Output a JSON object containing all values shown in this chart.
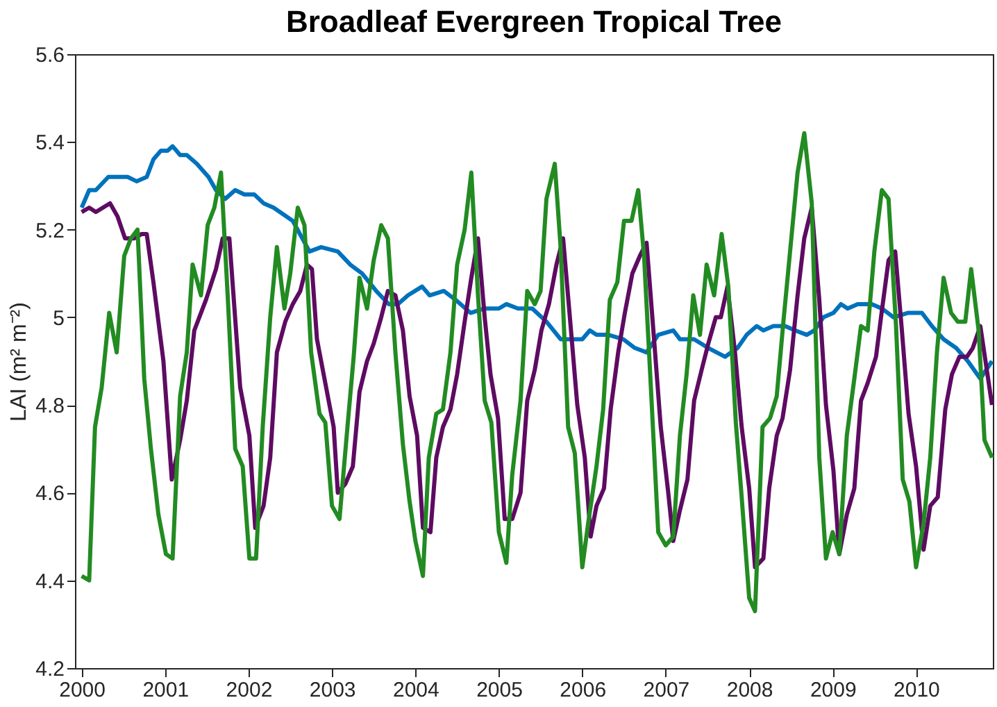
{
  "chart_data": {
    "type": "line",
    "title": "Broadleaf Evergreen Tropical Tree",
    "ylabel": "LAI (m² m⁻²)",
    "xlim": [
      1999.92,
      2010.92
    ],
    "xticks": [
      2000,
      2001,
      2002,
      2003,
      2004,
      2005,
      2006,
      2007,
      2008,
      2009,
      2010
    ],
    "ylim": [
      4.2,
      5.6
    ],
    "yticks": [
      4.2,
      4.4,
      4.6,
      4.8,
      5,
      5.2,
      5.4,
      5.6
    ],
    "grid": false,
    "marker": "none",
    "line_style": "solid",
    "series": [
      {
        "color": "#0072bd",
        "x": [
          2000,
          2000.09,
          2000.17,
          2000.32,
          2000.46,
          2000.55,
          2000.66,
          2000.78,
          2000.86,
          2000.95,
          2001.03,
          2001.09,
          2001.18,
          2001.26,
          2001.38,
          2001.52,
          2001.61,
          2001.72,
          2001.84,
          2001.95,
          2002.07,
          2002.18,
          2002.3,
          2002.53,
          2002.73,
          2002.87,
          2003.07,
          2003.22,
          2003.36,
          2003.53,
          2003.68,
          2003.79,
          2003.91,
          2004.08,
          2004.17,
          2004.34,
          2004.48,
          2004.66,
          2004.83,
          2005.0,
          2005.09,
          2005.23,
          2005.4,
          2005.57,
          2005.74,
          2005.86,
          2006.0,
          2006.09,
          2006.17,
          2006.31,
          2006.49,
          2006.63,
          2006.77,
          2006.91,
          2007.09,
          2007.17,
          2007.34,
          2007.51,
          2007.71,
          2007.86,
          2007.97,
          2008.09,
          2008.17,
          2008.29,
          2008.43,
          2008.55,
          2008.69,
          2008.78,
          2008.89,
          2009.01,
          2009.1,
          2009.18,
          2009.3,
          2009.47,
          2009.59,
          2009.73,
          2009.9,
          2010.07,
          2010.19,
          2010.33,
          2010.48,
          2010.62,
          2010.77,
          2010.91
        ],
        "values": [
          5.25,
          5.29,
          5.29,
          5.32,
          5.32,
          5.32,
          5.31,
          5.32,
          5.36,
          5.38,
          5.38,
          5.39,
          5.37,
          5.37,
          5.35,
          5.32,
          5.29,
          5.27,
          5.29,
          5.28,
          5.28,
          5.26,
          5.25,
          5.22,
          5.15,
          5.16,
          5.15,
          5.12,
          5.1,
          5.06,
          5.03,
          5.03,
          5.05,
          5.07,
          5.05,
          5.06,
          5.04,
          5.01,
          5.02,
          5.02,
          5.03,
          5.02,
          5.02,
          4.99,
          4.95,
          4.95,
          4.95,
          4.97,
          4.96,
          4.96,
          4.95,
          4.93,
          4.92,
          4.96,
          4.97,
          4.95,
          4.95,
          4.93,
          4.91,
          4.93,
          4.96,
          4.98,
          4.97,
          4.98,
          4.98,
          4.97,
          4.96,
          4.97,
          5.0,
          5.01,
          5.03,
          5.02,
          5.03,
          5.03,
          5.02,
          5.0,
          5.01,
          5.01,
          4.98,
          4.95,
          4.93,
          4.9,
          4.86,
          4.9
        ]
      },
      {
        "color": "#5e0b62",
        "x": [
          2000,
          2000.09,
          2000.17,
          2000.34,
          2000.43,
          2000.52,
          2000.63,
          2000.72,
          2000.78,
          2000.86,
          2000.98,
          2001.08,
          2001.18,
          2001.26,
          2001.35,
          2001.49,
          2001.61,
          2001.69,
          2001.77,
          2001.9,
          2002.01,
          2002.08,
          2002.18,
          2002.26,
          2002.34,
          2002.44,
          2002.53,
          2002.62,
          2002.7,
          2002.76,
          2002.82,
          2002.93,
          2003.02,
          2003.07,
          2003.16,
          2003.25,
          2003.33,
          2003.42,
          2003.5,
          2003.59,
          2003.67,
          2003.76,
          2003.85,
          2003.93,
          2004.02,
          2004.09,
          2004.18,
          2004.25,
          2004.33,
          2004.42,
          2004.5,
          2004.59,
          2004.67,
          2004.75,
          2004.83,
          2004.9,
          2004.99,
          2005.07,
          2005.16,
          2005.26,
          2005.34,
          2005.43,
          2005.51,
          2005.6,
          2005.69,
          2005.77,
          2005.86,
          2005.94,
          2006.03,
          2006.1,
          2006.17,
          2006.26,
          2006.34,
          2006.43,
          2006.51,
          2006.6,
          2006.69,
          2006.77,
          2006.86,
          2006.94,
          2007.03,
          2007.09,
          2007.17,
          2007.26,
          2007.34,
          2007.43,
          2007.51,
          2007.6,
          2007.66,
          2007.74,
          2007.83,
          2007.91,
          2008.0,
          2008.07,
          2008.17,
          2008.24,
          2008.33,
          2008.4,
          2008.49,
          2008.58,
          2008.66,
          2008.75,
          2008.84,
          2008.92,
          2009.01,
          2009.08,
          2009.17,
          2009.26,
          2009.34,
          2009.42,
          2009.52,
          2009.58,
          2009.67,
          2009.75,
          2009.83,
          2009.91,
          2010.0,
          2010.09,
          2010.17,
          2010.26,
          2010.35,
          2010.43,
          2010.52,
          2010.61,
          2010.68,
          2010.77,
          2010.91
        ],
        "values": [
          5.24,
          5.25,
          5.24,
          5.26,
          5.23,
          5.18,
          5.18,
          5.19,
          5.19,
          5.08,
          4.9,
          4.63,
          4.72,
          4.81,
          4.97,
          5.04,
          5.11,
          5.18,
          5.18,
          4.84,
          4.73,
          4.52,
          4.57,
          4.68,
          4.92,
          4.99,
          5.03,
          5.06,
          5.12,
          5.11,
          4.95,
          4.84,
          4.75,
          4.6,
          4.62,
          4.66,
          4.83,
          4.9,
          4.94,
          5.0,
          5.06,
          5.05,
          4.97,
          4.82,
          4.73,
          4.52,
          4.51,
          4.68,
          4.75,
          4.79,
          4.87,
          4.99,
          5.09,
          5.18,
          5.0,
          4.87,
          4.77,
          4.54,
          4.54,
          4.6,
          4.81,
          4.88,
          4.97,
          5.03,
          5.12,
          5.18,
          4.98,
          4.8,
          4.68,
          4.5,
          4.57,
          4.61,
          4.79,
          4.92,
          5.01,
          5.1,
          5.14,
          5.17,
          4.95,
          4.75,
          4.6,
          4.49,
          4.56,
          4.63,
          4.81,
          4.88,
          4.94,
          5.0,
          5.0,
          5.07,
          4.92,
          4.75,
          4.61,
          4.43,
          4.45,
          4.61,
          4.73,
          4.77,
          4.88,
          5.05,
          5.18,
          5.25,
          5.04,
          4.8,
          4.65,
          4.46,
          4.55,
          4.61,
          4.81,
          4.85,
          4.91,
          5.0,
          5.13,
          5.15,
          4.97,
          4.78,
          4.66,
          4.47,
          4.57,
          4.59,
          4.79,
          4.87,
          4.91,
          4.91,
          4.93,
          4.98,
          4.8
        ]
      },
      {
        "color": "#228b22",
        "x": [
          2000,
          2000.09,
          2000.16,
          2000.24,
          2000.33,
          2000.42,
          2000.51,
          2000.59,
          2000.67,
          2000.75,
          2000.83,
          2000.92,
          2001.01,
          2001.09,
          2001.18,
          2001.26,
          2001.33,
          2001.43,
          2001.51,
          2001.59,
          2001.67,
          2001.75,
          2001.84,
          2001.93,
          2002.01,
          2002.09,
          2002.17,
          2002.26,
          2002.34,
          2002.43,
          2002.5,
          2002.59,
          2002.67,
          2002.75,
          2002.85,
          2002.92,
          2003.0,
          2003.09,
          2003.19,
          2003.26,
          2003.33,
          2003.42,
          2003.5,
          2003.59,
          2003.67,
          2003.76,
          2003.85,
          2003.93,
          2004.0,
          2004.09,
          2004.16,
          2004.25,
          2004.33,
          2004.42,
          2004.5,
          2004.59,
          2004.67,
          2004.75,
          2004.83,
          2004.91,
          2005.0,
          2005.09,
          2005.16,
          2005.26,
          2005.34,
          2005.43,
          2005.5,
          2005.57,
          2005.67,
          2005.74,
          2005.83,
          2005.91,
          2006.0,
          2006.07,
          2006.17,
          2006.25,
          2006.33,
          2006.42,
          2006.5,
          2006.59,
          2006.67,
          2006.74,
          2006.83,
          2006.91,
          2007.0,
          2007.09,
          2007.17,
          2007.25,
          2007.33,
          2007.41,
          2007.49,
          2007.58,
          2007.67,
          2007.75,
          2007.84,
          2007.91,
          2008.0,
          2008.07,
          2008.16,
          2008.25,
          2008.33,
          2008.41,
          2008.5,
          2008.58,
          2008.66,
          2008.75,
          2008.84,
          2008.92,
          2009.0,
          2009.08,
          2009.17,
          2009.26,
          2009.34,
          2009.42,
          2009.5,
          2009.59,
          2009.67,
          2009.76,
          2009.84,
          2009.92,
          2010.0,
          2010.09,
          2010.17,
          2010.25,
          2010.33,
          2010.42,
          2010.5,
          2010.59,
          2010.66,
          2010.75,
          2010.82,
          2010.91
        ],
        "values": [
          4.41,
          4.4,
          4.75,
          4.84,
          5.01,
          4.92,
          5.14,
          5.18,
          5.2,
          4.86,
          4.7,
          4.55,
          4.46,
          4.45,
          4.82,
          4.92,
          5.12,
          5.05,
          5.21,
          5.25,
          5.33,
          5.05,
          4.7,
          4.66,
          4.45,
          4.45,
          4.75,
          5.0,
          5.16,
          5.02,
          5.1,
          5.25,
          5.21,
          4.92,
          4.78,
          4.76,
          4.57,
          4.54,
          4.76,
          4.91,
          5.09,
          5.02,
          5.13,
          5.21,
          5.18,
          4.92,
          4.71,
          4.58,
          4.49,
          4.41,
          4.68,
          4.78,
          4.79,
          4.92,
          5.12,
          5.2,
          5.33,
          5.05,
          4.81,
          4.76,
          4.51,
          4.44,
          4.64,
          4.81,
          5.06,
          5.03,
          5.06,
          5.27,
          5.35,
          5.16,
          4.75,
          4.69,
          4.43,
          4.53,
          4.66,
          4.79,
          5.04,
          5.08,
          5.22,
          5.22,
          5.29,
          5.14,
          4.81,
          4.51,
          4.48,
          4.5,
          4.73,
          4.87,
          5.05,
          4.96,
          5.12,
          5.05,
          5.19,
          5.07,
          4.76,
          4.59,
          4.36,
          4.33,
          4.75,
          4.77,
          4.82,
          4.99,
          5.17,
          5.33,
          5.42,
          5.26,
          4.68,
          4.45,
          4.51,
          4.46,
          4.73,
          4.86,
          4.98,
          4.97,
          5.15,
          5.29,
          5.27,
          4.98,
          4.63,
          4.58,
          4.43,
          4.53,
          4.68,
          4.92,
          5.09,
          5.01,
          4.99,
          4.99,
          5.11,
          4.97,
          4.72,
          4.68
        ]
      }
    ]
  }
}
